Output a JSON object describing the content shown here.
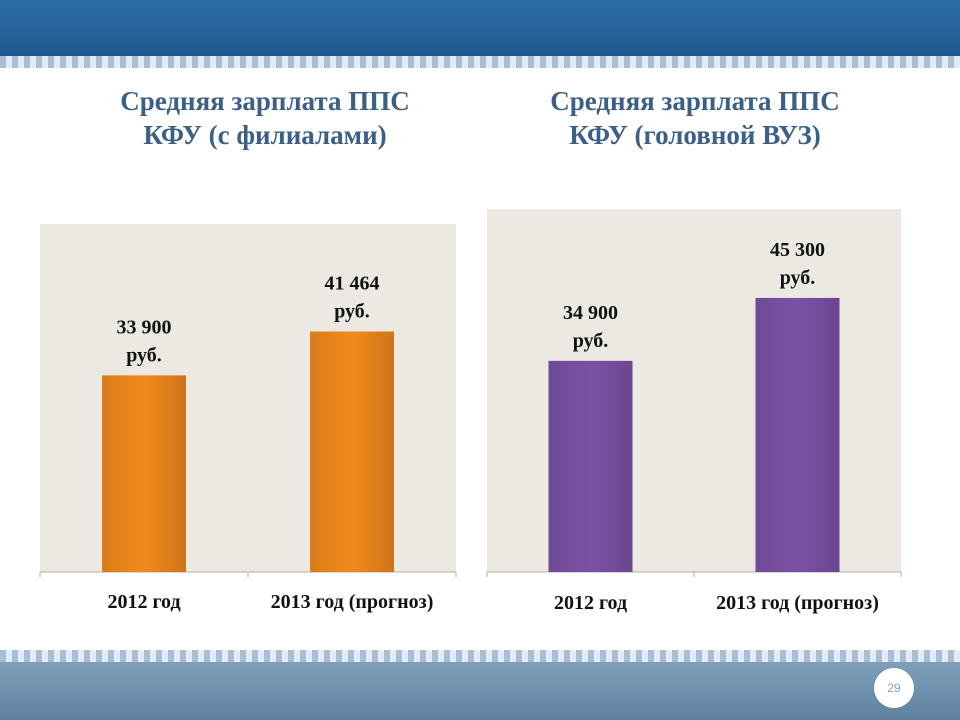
{
  "slide": {
    "title_left": [
      "Средняя зарплата ППС",
      "КФУ (с филиалами)"
    ],
    "title_right": [
      "Средняя зарплата ППС",
      "КФУ (головной ВУЗ)"
    ],
    "page_number": "29"
  },
  "chart_data": [
    {
      "type": "bar",
      "title": "Средняя зарплата ППС КФУ (с филиалами)",
      "categories": [
        "2012 год",
        "2013 год (прогноз)"
      ],
      "values": [
        33900,
        41464
      ],
      "data_labels": [
        [
          "33 900",
          "руб."
        ],
        [
          "41 464",
          "руб."
        ]
      ],
      "ylim": [
        0,
        60000
      ],
      "color": "#f28a1c",
      "grid": false,
      "legend": "none"
    },
    {
      "type": "bar",
      "title": "Средняя зарплата ППС КФУ (головной ВУЗ)",
      "categories": [
        "2012 год",
        "2013 год (прогноз)"
      ],
      "values": [
        34900,
        45300
      ],
      "data_labels": [
        [
          "34 900",
          "руб."
        ],
        [
          "45 300",
          "руб."
        ]
      ],
      "ylim": [
        0,
        60000
      ],
      "color": "#7b52a6",
      "grid": false,
      "legend": "none"
    }
  ]
}
